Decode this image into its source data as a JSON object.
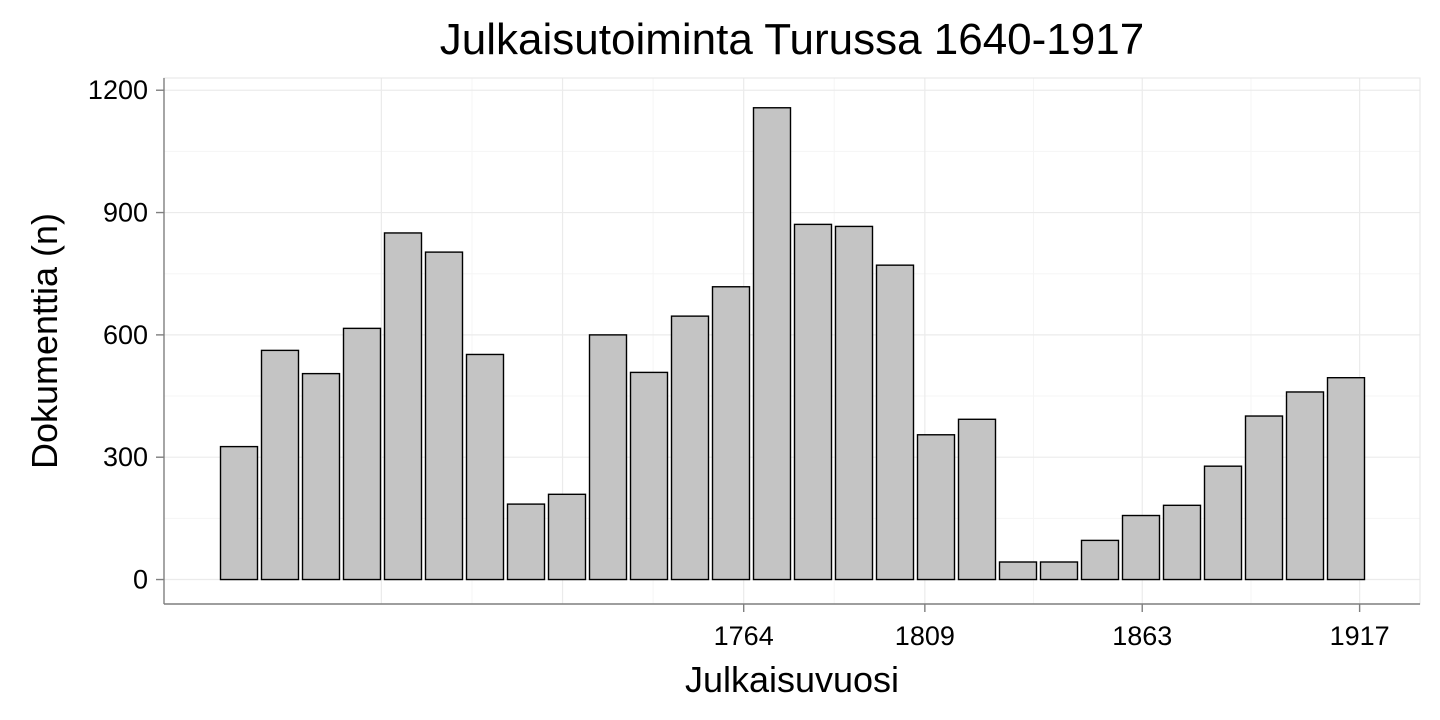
{
  "chart_data": {
    "type": "bar",
    "title": "Julkaisutoiminta Turussa 1640-1917",
    "xlabel": "Julkaisuvuosi",
    "ylabel": "Dokumenttia (n)",
    "ylim": [
      -60,
      1230
    ],
    "y_ticks": [
      0,
      300,
      600,
      900,
      1200
    ],
    "y_tick_labels": [
      "0",
      "300",
      "600",
      "900",
      "1200"
    ],
    "x_range": [
      1620,
      1932
    ],
    "x_ticks": [
      1764,
      1809,
      1863,
      1917
    ],
    "x_tick_labels": [
      "1764",
      "1809",
      "1863",
      "1917"
    ],
    "grid": true,
    "bar_start_year": 1642,
    "bar_step_years": 10,
    "values": [
      326,
      562,
      505,
      616,
      850,
      803,
      552,
      185,
      209,
      600,
      508,
      646,
      718,
      1157,
      871,
      866,
      771,
      355,
      393,
      43,
      43,
      96,
      157,
      182,
      278,
      401,
      460,
      495
    ]
  }
}
